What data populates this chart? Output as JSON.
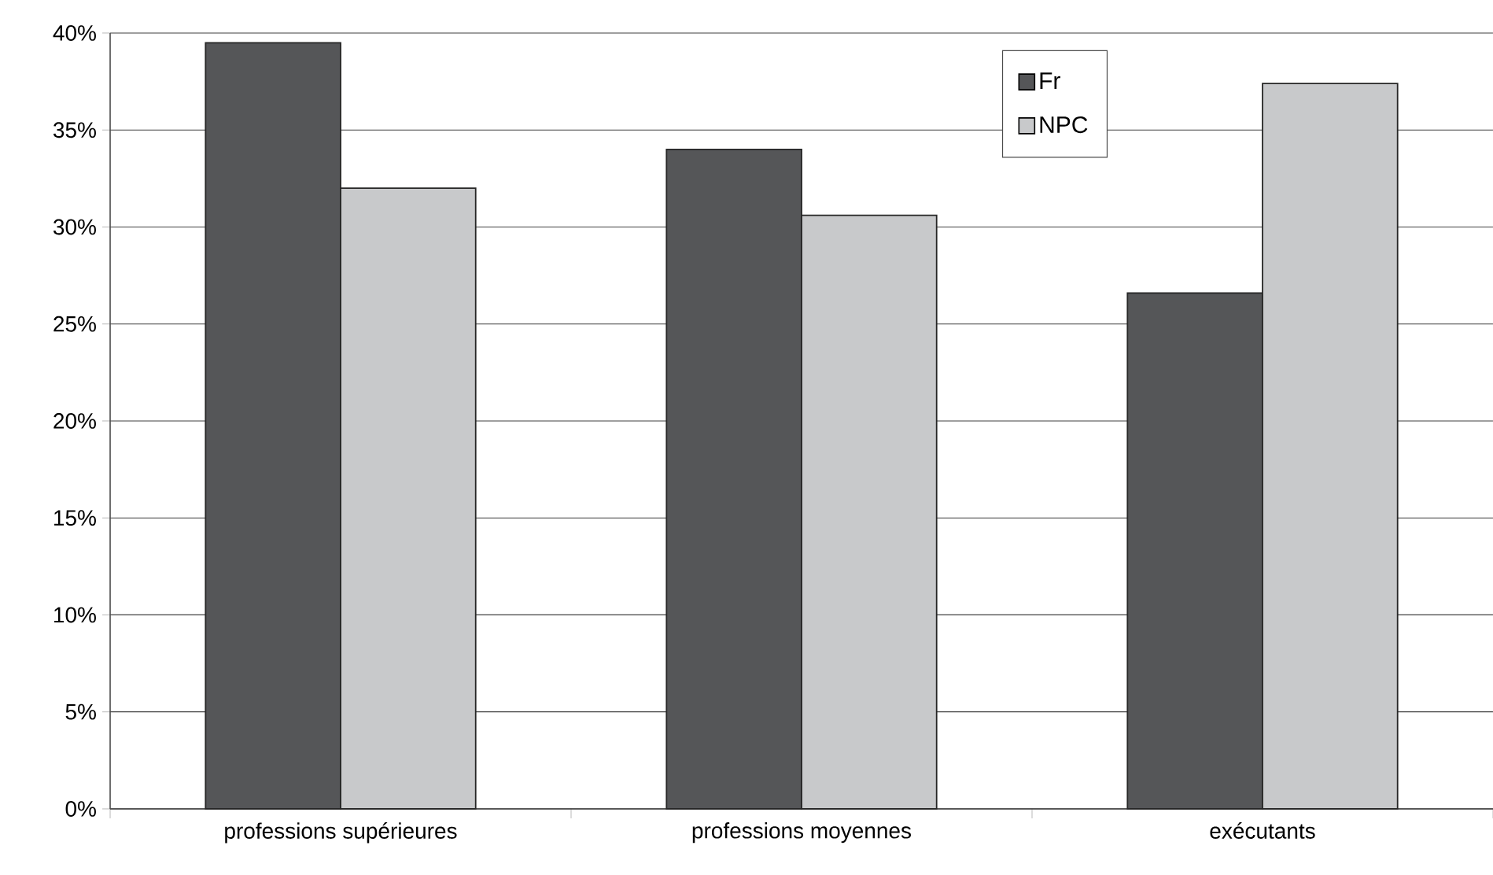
{
  "chart_data": {
    "type": "bar",
    "categories": [
      "professions supérieures",
      "professions moyennes",
      "exécutants"
    ],
    "series": [
      {
        "name": "Fr",
        "color": "#555658",
        "values": [
          39.5,
          34.0,
          26.6
        ]
      },
      {
        "name": "NPC",
        "color": "#c8c9cb",
        "values": [
          32.0,
          30.6,
          37.4
        ]
      }
    ],
    "ylim": [
      0,
      40
    ],
    "yticks": [
      {
        "value": 0,
        "label": "0%"
      },
      {
        "value": 5,
        "label": "5%"
      },
      {
        "value": 10,
        "label": "10%"
      },
      {
        "value": 15,
        "label": "15%"
      },
      {
        "value": 20,
        "label": "20%"
      },
      {
        "value": 25,
        "label": "25%"
      },
      {
        "value": 30,
        "label": "30%"
      },
      {
        "value": 35,
        "label": "35%"
      },
      {
        "value": 40,
        "label": "40%"
      }
    ],
    "grid": "y",
    "legend": "top right"
  }
}
